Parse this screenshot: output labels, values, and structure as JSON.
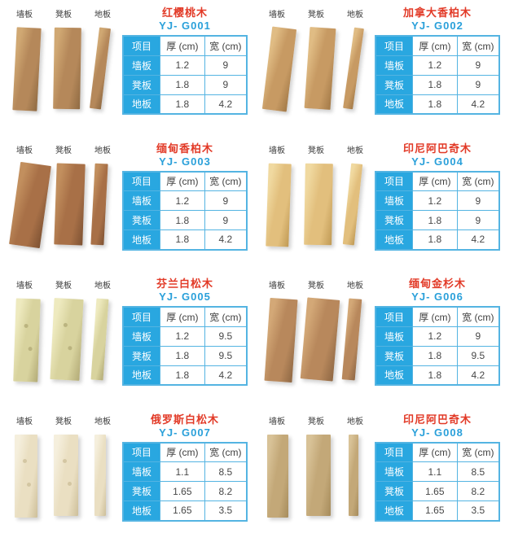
{
  "page": {
    "background": "#ffffff"
  },
  "colors": {
    "table_cell_blue": "#29a7e0",
    "table_border_blue": "#54b4e2",
    "product_name_red": "#e23a27",
    "product_code_blue": "#2aa0da",
    "text_dark": "#3f3f3f"
  },
  "plank_labels": {
    "wall": "墙板",
    "stool": "凳板",
    "floor": "地板"
  },
  "spec_table": {
    "header": {
      "item": "项目",
      "thickness": "厚 (cm)",
      "width": "宽 (cm)"
    },
    "row_labels": [
      "墙板",
      "凳板",
      "地板"
    ]
  },
  "products": [
    {
      "name": "红樱桃木",
      "code": "YJ- G001",
      "rows": [
        [
          "1.2",
          "9"
        ],
        [
          "1.8",
          "9"
        ],
        [
          "1.8",
          "4.2"
        ]
      ],
      "wood": {
        "light": "#d0a873",
        "base": "#b5885a",
        "dark": "#8f6a42",
        "widths": [
          30,
          33,
          14
        ],
        "tilts": [
          3,
          1,
          7
        ],
        "knots": false
      }
    },
    {
      "name": "加拿大香柏木",
      "code": "YJ- G002",
      "rows": [
        [
          "1.2",
          "9"
        ],
        [
          "1.8",
          "9"
        ],
        [
          "1.8",
          "4.2"
        ]
      ],
      "wood": {
        "light": "#e0bc84",
        "base": "#c79a63",
        "dark": "#a37a48",
        "widths": [
          30,
          32,
          12
        ],
        "tilts": [
          7,
          4,
          8
        ],
        "knots": false
      }
    },
    {
      "name": "缅甸香柏木",
      "code": "YJ- G003",
      "rows": [
        [
          "1.2",
          "9"
        ],
        [
          "1.8",
          "9"
        ],
        [
          "1.8",
          "4.2"
        ]
      ],
      "wood": {
        "light": "#c28f5e",
        "base": "#a87047",
        "dark": "#7e5233",
        "widths": [
          38,
          35,
          16
        ],
        "tilts": [
          8,
          2,
          3
        ],
        "knots": false
      }
    },
    {
      "name": "印尼阿巴奇木",
      "code": "YJ- G004",
      "rows": [
        [
          "1.2",
          "9"
        ],
        [
          "1.8",
          "9"
        ],
        [
          "1.8",
          "4.2"
        ]
      ],
      "wood": {
        "light": "#f0d9a0",
        "base": "#e2bf7d",
        "dark": "#c09a55",
        "widths": [
          28,
          34,
          14
        ],
        "tilts": [
          2,
          1,
          6
        ],
        "knots": false
      }
    },
    {
      "name": "芬兰白松木",
      "code": "YJ- G005",
      "rows": [
        [
          "1.2",
          "9.5"
        ],
        [
          "1.8",
          "9.5"
        ],
        [
          "1.8",
          "4.2"
        ]
      ],
      "wood": {
        "light": "#eeeabf",
        "base": "#d8d39e",
        "dark": "#b3ab77",
        "widths": [
          30,
          36,
          15
        ],
        "tilts": [
          2,
          3,
          4
        ],
        "knots": true
      }
    },
    {
      "name": "缅甸金杉木",
      "code": "YJ- G006",
      "rows": [
        [
          "1.2",
          "9"
        ],
        [
          "1.8",
          "9.5"
        ],
        [
          "1.8",
          "4.2"
        ]
      ],
      "wood": {
        "light": "#d3a877",
        "base": "#b8885c",
        "dark": "#8f6844",
        "widths": [
          34,
          40,
          16
        ],
        "tilts": [
          4,
          5,
          5
        ],
        "knots": false
      }
    },
    {
      "name": "俄罗斯白松木",
      "code": "YJ- G007",
      "rows": [
        [
          "1.1",
          "8.5"
        ],
        [
          "1.65",
          "8.2"
        ],
        [
          "1.65",
          "3.5"
        ]
      ],
      "wood": {
        "light": "#f5efdd",
        "base": "#eadfc2",
        "dark": "#cdbf9a",
        "widths": [
          28,
          30,
          14
        ],
        "tilts": [
          0,
          0,
          0
        ],
        "knots": true
      }
    },
    {
      "name": "印尼阿巴奇木",
      "code": "YJ- G008",
      "rows": [
        [
          "1.1",
          "8.5"
        ],
        [
          "1.65",
          "8.2"
        ],
        [
          "1.65",
          "3.5"
        ]
      ],
      "wood": {
        "light": "#d8c297",
        "base": "#c3a878",
        "dark": "#a68c5c",
        "widths": [
          26,
          30,
          12
        ],
        "tilts": [
          0,
          0,
          0
        ],
        "knots": false
      }
    }
  ]
}
